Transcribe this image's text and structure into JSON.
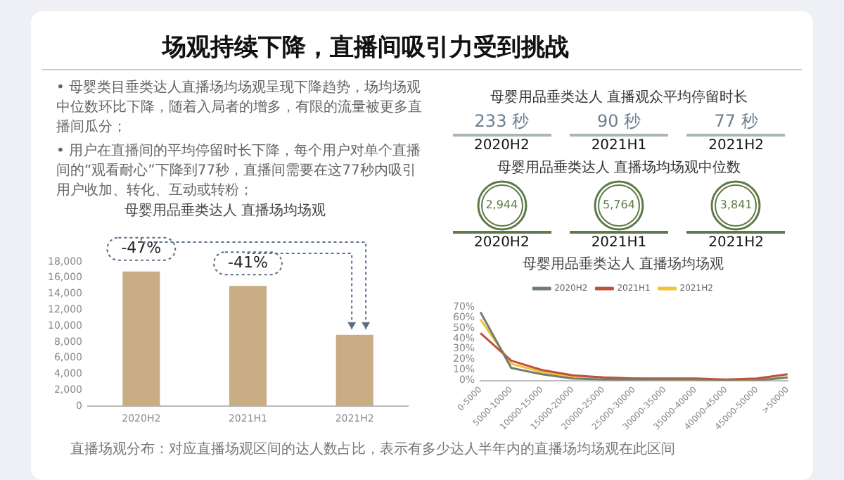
{
  "chart_data": [
    {
      "type": "other",
      "title": "场观持续下降，直播间吸引力受到挑战",
      "annotations": [
        "• 母婴类目垂类达人直播场均场观呈现下降趋势，场均场观中位数环比下降，随着入局者的增多，有限的流量被更多直播间瓜分；",
        "• 用户在直播间的平均停留时长下降，每个用户对单个直播间的“观看耐心”下降到77秒，直播间需要在这77秒内吸引用户收加、转化、互动或转粉；"
      ]
    },
    {
      "type": "bar",
      "title": "母婴用品垂类达人 直播场均场观",
      "categories": [
        "2020H2",
        "2021H1",
        "2021H2"
      ],
      "values": [
        16800,
        15000,
        8900
      ],
      "color": "#c9ad85",
      "ylim": [
        0,
        18000
      ],
      "yticks": [
        0,
        {
          "value": 2000,
          "label": "2,000"
        },
        {
          "value": 4000,
          "label": "4,000"
        },
        {
          "value": 6000,
          "label": "6,000"
        },
        {
          "value": 8000,
          "label": "8,000"
        },
        {
          "value": 10000,
          "label": "10,000"
        },
        {
          "value": 12000,
          "label": "12,000"
        },
        {
          "value": 14000,
          "label": "14,000"
        },
        {
          "value": 16000,
          "label": "16,000"
        },
        {
          "value": 18000,
          "label": "18,000"
        }
      ],
      "legend": false,
      "grid": false,
      "annotations": [
        {
          "text": "-47%",
          "x": "2020H2",
          "y": 16800
        },
        {
          "text": "-41%",
          "x": "2021H1",
          "y": 15000
        },
        "直播场观分布：对应直播场观区间的达人数占比，表示有多少达人半年内的直播场均场观在此区间"
      ]
    },
    {
      "type": "other",
      "title": "母婴用品垂类达人 直播观众平均停留时长",
      "categories": [
        "2020H2",
        "2021H1",
        "2021H2"
      ],
      "values": [
        233,
        90,
        77
      ],
      "value_labels": [
        "233 秒",
        "90 秒",
        "77 秒"
      ],
      "color": "#6b7f8f"
    },
    {
      "type": "other",
      "title": "母婴用品垂类达人 直播场均场观中位数",
      "categories": [
        "2020H2",
        "2021H1",
        "2021H2"
      ],
      "values": [
        2944,
        5764,
        3841
      ],
      "value_labels": [
        "2,944",
        "5,764",
        "3,841"
      ],
      "color": "#5e7a48"
    },
    {
      "type": "line",
      "title": "母婴用品垂类达人 直播场均场观",
      "categories": [
        "0-5000",
        "5000-10000",
        "10000-15000",
        "15000-20000",
        "20000-25000",
        "25000-30000",
        "30000-35000",
        "35000-40000",
        "40000-45000",
        "45000-50000",
        ">50000"
      ],
      "series": [
        {
          "name": "2020H2",
          "color": "#6f7d72",
          "values": [
            65,
            12,
            6,
            2,
            1,
            1,
            1,
            1,
            0,
            0,
            3
          ]
        },
        {
          "name": "2021H1",
          "color": "#c0503a",
          "values": [
            45,
            19,
            10,
            5,
            3,
            2,
            2,
            2,
            1,
            2,
            6
          ]
        },
        {
          "name": "2021H2",
          "color": "#f5c230",
          "values": [
            58,
            16,
            8,
            4,
            3,
            2,
            1,
            1,
            0,
            1,
            3
          ]
        }
      ],
      "ylim": [
        0,
        70
      ],
      "yticks": [
        {
          "value": 0,
          "label": "0%"
        },
        {
          "value": 10,
          "label": "10%"
        },
        {
          "value": 20,
          "label": "20%"
        },
        {
          "value": 30,
          "label": "30%"
        },
        {
          "value": 40,
          "label": "40%"
        },
        {
          "value": 50,
          "label": "50%"
        },
        {
          "value": 60,
          "label": "60%"
        },
        {
          "value": 70,
          "label": "70%"
        }
      ],
      "legend": "top",
      "grid": false,
      "marker": "none",
      "line_style": "solid"
    }
  ]
}
